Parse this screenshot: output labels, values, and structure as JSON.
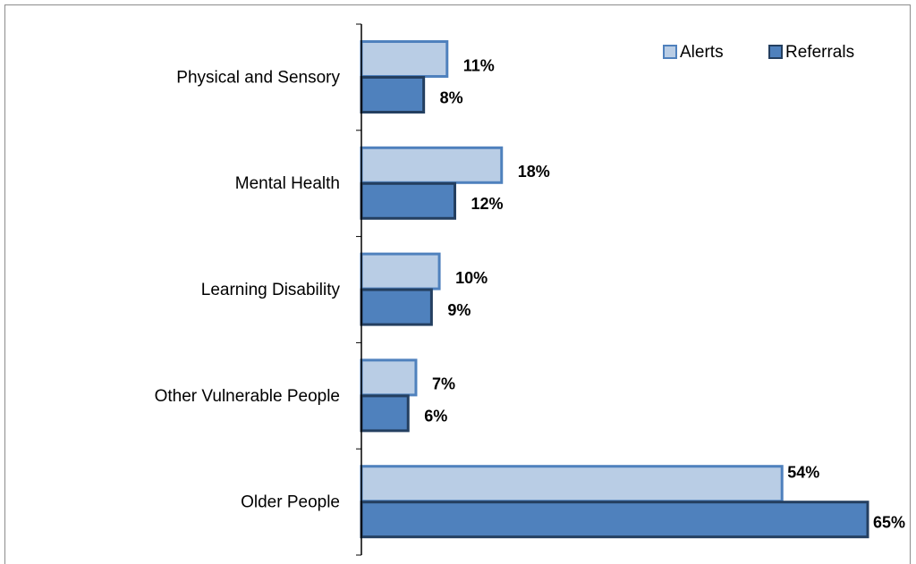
{
  "chart_data": {
    "type": "bar",
    "orientation": "horizontal",
    "categories": [
      "Physical and Sensory",
      "Mental Health",
      "Learning Disability",
      "Other Vulnerable People",
      "Older People"
    ],
    "series": [
      {
        "name": "Alerts",
        "color": "#b9cde5",
        "edge_color": "#4f81bd",
        "values": [
          11,
          18,
          10,
          7,
          54
        ],
        "value_labels": [
          "11%",
          "18%",
          "10%",
          "7%",
          "54%"
        ]
      },
      {
        "name": "Referrals",
        "color": "#4f81bd",
        "edge_color": "#243f60",
        "values": [
          8,
          12,
          9,
          6,
          65
        ],
        "value_labels": [
          "8%",
          "12%",
          "9%",
          "6%",
          "65%"
        ]
      }
    ],
    "legend": "top-right"
  }
}
